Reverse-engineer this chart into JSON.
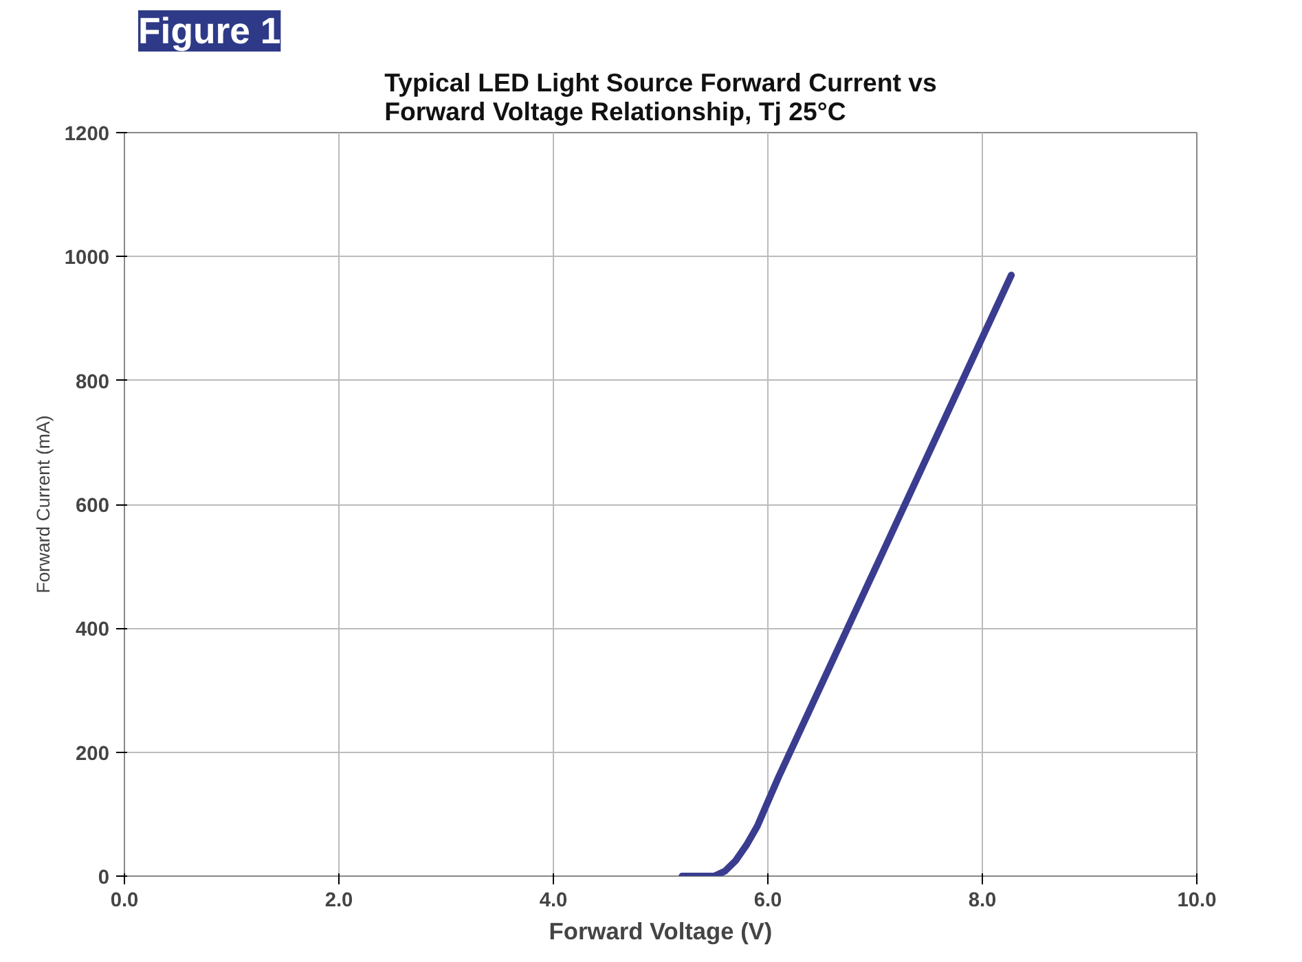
{
  "chart_data": {
    "type": "line",
    "title": "Figure 1",
    "subtitle": "Typical LED Light Source Forward Current vs\nForward Voltage Relationship, Tj 25°C",
    "xlabel": "Forward Voltage (V)",
    "ylabel": "Forward Current (mA)",
    "x": [
      5.2,
      5.4,
      5.5,
      5.6,
      5.7,
      5.8,
      5.9,
      6.0,
      6.1,
      8.27
    ],
    "series": [
      {
        "color": "#3a3d8f",
        "values": [
          0,
          0,
          0,
          8,
          25,
          50,
          80,
          120,
          160,
          970
        ]
      }
    ],
    "xlim": [
      0,
      10
    ],
    "ylim": [
      0,
      1200
    ],
    "xticks": [
      {
        "value": 0,
        "label": "0.0"
      },
      {
        "value": 2,
        "label": "2.0"
      },
      {
        "value": 4,
        "label": "4.0"
      },
      {
        "value": 6,
        "label": "6.0"
      },
      {
        "value": 8,
        "label": "8.0"
      },
      {
        "value": 10,
        "label": "10.0"
      }
    ],
    "yticks": [
      0,
      200,
      400,
      600,
      800,
      1000,
      1200
    ],
    "grid": true,
    "marker": "none",
    "line_style": "solid"
  }
}
